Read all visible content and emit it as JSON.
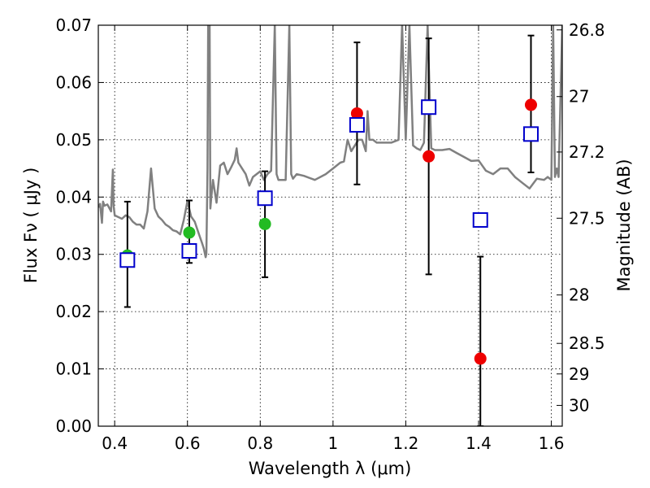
{
  "chart_data": {
    "type": "scatter",
    "xlabel": "Wavelength  λ (μm)",
    "ylabel": "Flux  Fν  ( μJy )",
    "y2label": "Magnitude (AB)",
    "xlim": [
      0.355,
      1.63
    ],
    "ylim": [
      0.0,
      0.07
    ],
    "x_ticks": [
      0.4,
      0.6,
      0.8,
      1.0,
      1.2,
      1.4,
      1.6
    ],
    "x_tick_labels": [
      "0.4",
      "0.6",
      "0.8",
      "1",
      "1.2",
      "1.4",
      "1.6"
    ],
    "y_ticks": [
      0.0,
      0.01,
      0.02,
      0.03,
      0.04,
      0.05,
      0.06,
      0.07
    ],
    "y_tick_labels": [
      "0.00",
      "0.01",
      "0.02",
      "0.03",
      "0.04",
      "0.05",
      "0.06",
      "0.07"
    ],
    "mag_ticks": [
      26.8,
      27,
      27.2,
      27.5,
      28,
      28.5,
      29,
      30
    ],
    "mag_tick_labels": [
      "26.8",
      "27",
      "27.2",
      "27.5",
      "28",
      "28.5",
      "29",
      "30"
    ],
    "grid": true,
    "colors": {
      "spectrum": "#808080",
      "green": "#22bb22",
      "red": "#ee0000",
      "model": "#0000cc",
      "errorbar": "#000000"
    },
    "series": [
      {
        "name": "observed-green",
        "color": "#22bb22",
        "marker": "circle",
        "points": [
          {
            "x": 0.435,
            "y": 0.0298,
            "ylo": 0.0208,
            "yhi": 0.0392
          },
          {
            "x": 0.605,
            "y": 0.0338,
            "ylo": 0.0285,
            "yhi": 0.0394
          },
          {
            "x": 0.813,
            "y": 0.0353,
            "ylo": 0.026,
            "yhi": 0.0445
          }
        ]
      },
      {
        "name": "observed-red",
        "color": "#ee0000",
        "marker": "circle",
        "points": [
          {
            "x": 1.066,
            "y": 0.0546,
            "ylo": 0.0422,
            "yhi": 0.067
          },
          {
            "x": 1.263,
            "y": 0.0471,
            "ylo": 0.0265,
            "yhi": 0.0677
          },
          {
            "x": 1.405,
            "y": 0.0118,
            "ylo": 0.0,
            "yhi": 0.0296
          },
          {
            "x": 1.544,
            "y": 0.0561,
            "ylo": 0.0443,
            "yhi": 0.0682
          }
        ]
      },
      {
        "name": "model-photometry",
        "color": "#0000cc",
        "marker": "open-square",
        "points": [
          {
            "x": 0.435,
            "y": 0.029
          },
          {
            "x": 0.605,
            "y": 0.0306
          },
          {
            "x": 0.813,
            "y": 0.0398
          },
          {
            "x": 1.066,
            "y": 0.0526
          },
          {
            "x": 1.263,
            "y": 0.0557
          },
          {
            "x": 1.405,
            "y": 0.036
          },
          {
            "x": 1.544,
            "y": 0.051
          }
        ]
      }
    ],
    "spectrum": {
      "name": "model-spectrum",
      "color": "#808080",
      "x": [
        0.355,
        0.36,
        0.365,
        0.368,
        0.372,
        0.38,
        0.39,
        0.395,
        0.397,
        0.4,
        0.41,
        0.42,
        0.43,
        0.44,
        0.45,
        0.46,
        0.47,
        0.48,
        0.49,
        0.5,
        0.51,
        0.52,
        0.53,
        0.54,
        0.55,
        0.56,
        0.57,
        0.58,
        0.59,
        0.6,
        0.61,
        0.62,
        0.63,
        0.64,
        0.645,
        0.65,
        0.652,
        0.655,
        0.657,
        0.659,
        0.661,
        0.663,
        0.665,
        0.67,
        0.68,
        0.69,
        0.7,
        0.71,
        0.72,
        0.73,
        0.735,
        0.74,
        0.75,
        0.76,
        0.77,
        0.78,
        0.79,
        0.8,
        0.81,
        0.82,
        0.83,
        0.84,
        0.845,
        0.85,
        0.87,
        0.88,
        0.885,
        0.89,
        0.9,
        0.92,
        0.95,
        0.98,
        1.0,
        1.02,
        1.03,
        1.04,
        1.05,
        1.06,
        1.07,
        1.08,
        1.09,
        1.095,
        1.1,
        1.11,
        1.12,
        1.14,
        1.16,
        1.18,
        1.19,
        1.2,
        1.21,
        1.22,
        1.23,
        1.24,
        1.25,
        1.26,
        1.27,
        1.28,
        1.3,
        1.32,
        1.34,
        1.36,
        1.38,
        1.4,
        1.42,
        1.44,
        1.46,
        1.48,
        1.5,
        1.52,
        1.54,
        1.56,
        1.58,
        1.59,
        1.6,
        1.605,
        1.61,
        1.615,
        1.62,
        1.63
      ],
      "y": [
        0.0382,
        0.0388,
        0.0355,
        0.0392,
        0.0385,
        0.0387,
        0.0375,
        0.0448,
        0.0385,
        0.0368,
        0.0365,
        0.0362,
        0.0368,
        0.0365,
        0.0357,
        0.0352,
        0.0352,
        0.0345,
        0.0375,
        0.045,
        0.038,
        0.0366,
        0.036,
        0.0352,
        0.0348,
        0.0342,
        0.034,
        0.0335,
        0.036,
        0.0393,
        0.0366,
        0.0357,
        0.0338,
        0.032,
        0.031,
        0.0295,
        0.0301,
        0.045,
        0.07,
        0.07,
        0.07,
        0.038,
        0.0395,
        0.043,
        0.039,
        0.0455,
        0.046,
        0.044,
        0.0452,
        0.0465,
        0.0485,
        0.046,
        0.045,
        0.044,
        0.042,
        0.0435,
        0.044,
        0.0445,
        0.043,
        0.044,
        0.0446,
        0.07,
        0.044,
        0.043,
        0.043,
        0.07,
        0.044,
        0.0432,
        0.044,
        0.0437,
        0.043,
        0.044,
        0.045,
        0.046,
        0.0462,
        0.05,
        0.048,
        0.049,
        0.05,
        0.05,
        0.048,
        0.055,
        0.05,
        0.05,
        0.0495,
        0.0495,
        0.0495,
        0.05,
        0.07,
        0.05,
        0.07,
        0.049,
        0.0485,
        0.0482,
        0.0495,
        0.07,
        0.0485,
        0.0482,
        0.0482,
        0.0484,
        0.0477,
        0.047,
        0.0463,
        0.0464,
        0.0446,
        0.044,
        0.045,
        0.045,
        0.0435,
        0.0425,
        0.0415,
        0.0432,
        0.043,
        0.0435,
        0.043,
        0.07,
        0.0435,
        0.045,
        0.0435,
        0.07
      ]
    }
  }
}
